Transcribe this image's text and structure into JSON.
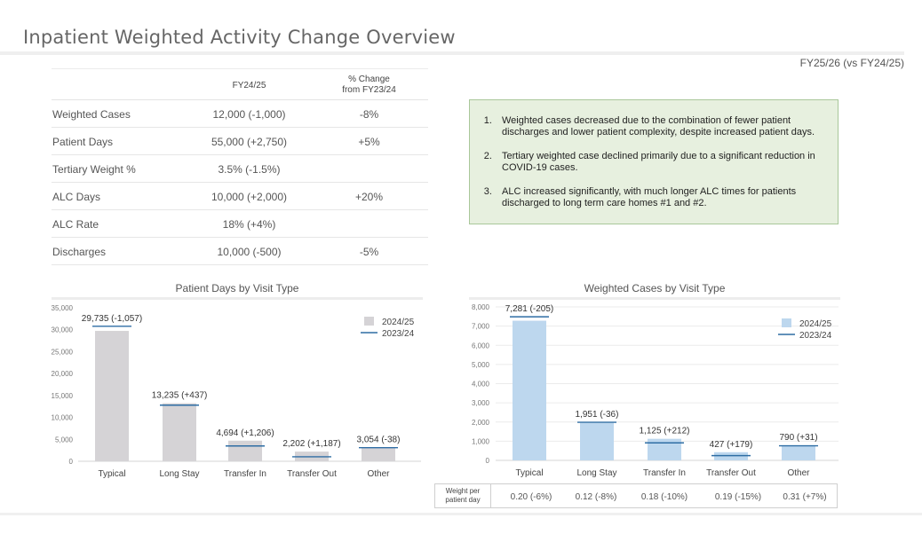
{
  "page": {
    "title": "Inpatient Weighted Activity Change Overview",
    "subtitle": "FY25/26 (vs FY24/25)"
  },
  "summary_table": {
    "headers": [
      "",
      "FY24/25",
      "% Change\nfrom FY23/24"
    ],
    "header_col1": "FY24/25",
    "header_col2_line1": "% Change",
    "header_col2_line2": "from FY23/24",
    "rows": [
      {
        "label": "Weighted Cases",
        "value": "12,000 (-1,000)",
        "change": "-8%"
      },
      {
        "label": "Patient Days",
        "value": "55,000 (+2,750)",
        "change": "+5%"
      },
      {
        "label": "Tertiary Weight %",
        "value": "3.5% (-1.5%)",
        "change": ""
      },
      {
        "label": "ALC Days",
        "value": "10,000 (+2,000)",
        "change": "+20%"
      },
      {
        "label": "ALC Rate",
        "value": "18% (+4%)",
        "change": ""
      },
      {
        "label": "Discharges",
        "value": "10,000 (-500)",
        "change": "-5%"
      }
    ]
  },
  "notes": [
    "Weighted cases decreased due to the combination of fewer patient discharges and lower patient complexity, despite increased patient days.",
    "Tertiary weighted case declined primarily due to a significant reduction in COVID-19 cases.",
    "ALC increased significantly, with much longer ALC times for patients discharged to long term care homes #1 and #2."
  ],
  "colors": {
    "patient_days_bar": "#d5d3d6",
    "weighted_cases_bar": "#bdd7ee",
    "prior_year_line": "#2e6da4",
    "notes_bg": "#e7f0df",
    "notes_border": "#a9c79a"
  },
  "weight_table": {
    "label_line1": "Weight per",
    "label_line2": "patient day",
    "values": [
      "0.20 (-6%)",
      "0.12 (-8%)",
      "0.18 (-10%)",
      "0.19 (-15%)",
      "0.31 (+7%)"
    ]
  },
  "chart_data": [
    {
      "type": "bar",
      "title": "Patient Days by Visit Type",
      "categories": [
        "Typical",
        "Long Stay",
        "Transfer In",
        "Transfer Out",
        "Other"
      ],
      "series": [
        {
          "name": "2024/25",
          "values": [
            29735,
            13235,
            4694,
            2202,
            3054
          ]
        },
        {
          "name": "2023/24",
          "values": [
            30792,
            12798,
            3488,
            1015,
            3092
          ]
        }
      ],
      "data_labels": [
        "29,735 (-1,057)",
        "13,235 (+437)",
        "4,694 (+1,206)",
        "2,202 (+1,187)",
        "3,054 (-38)"
      ],
      "ylim": [
        0,
        35000
      ],
      "yticks": [
        0,
        5000,
        10000,
        15000,
        20000,
        25000,
        30000,
        35000
      ],
      "ytick_labels": [
        "0",
        "5,000",
        "10,000",
        "15,000",
        "20,000",
        "25,000",
        "30,000",
        "35,000"
      ],
      "legend": [
        "2024/25",
        "2023/24"
      ],
      "legend_position": "top-right",
      "grid": false
    },
    {
      "type": "bar",
      "title": "Weighted Cases by Visit Type",
      "categories": [
        "Typical",
        "Long Stay",
        "Transfer In",
        "Transfer Out",
        "Other"
      ],
      "series": [
        {
          "name": "2024/25",
          "values": [
            7281,
            1951,
            1125,
            427,
            790
          ]
        },
        {
          "name": "2023/24",
          "values": [
            7486,
            1987,
            913,
            248,
            759
          ]
        }
      ],
      "data_labels": [
        "7,281 (-205)",
        "1,951 (-36)",
        "1,125 (+212)",
        "427 (+179)",
        "790 (+31)"
      ],
      "ylim": [
        0,
        8000
      ],
      "yticks": [
        0,
        1000,
        2000,
        3000,
        4000,
        5000,
        6000,
        7000,
        8000
      ],
      "ytick_labels": [
        "0",
        "1,000",
        "2,000",
        "3,000",
        "4,000",
        "5,000",
        "6,000",
        "7,000",
        "8,000"
      ],
      "legend": [
        "2024/25",
        "2023/24"
      ],
      "legend_position": "top-right",
      "grid": true
    }
  ]
}
